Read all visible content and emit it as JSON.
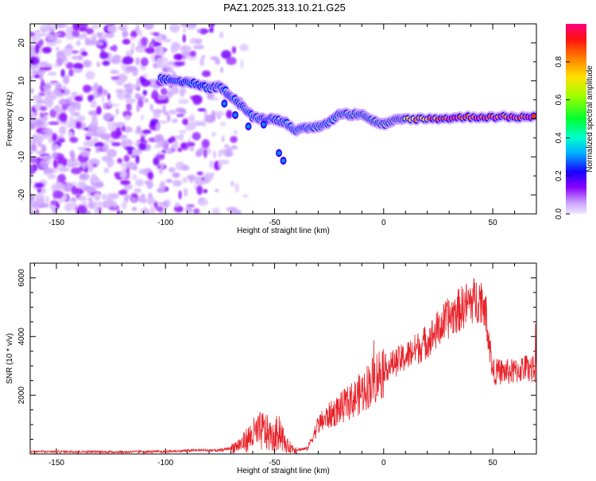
{
  "title": "PAZ1.2025.313.10.21.G25",
  "chart_data": [
    {
      "type": "heatmap",
      "xlabel": "Height of straight line (km)",
      "ylabel": "Frequency (Hz)",
      "xlim": [
        -162,
        70
      ],
      "ylim": [
        -25,
        25
      ],
      "xticks": [
        -150,
        -100,
        -50,
        0,
        50
      ],
      "yticks": [
        20,
        10,
        0,
        -10,
        -20
      ],
      "colorbar": {
        "label": "Normalized spectral amplitude",
        "range": [
          0,
          1
        ],
        "ticks": [
          0.0,
          0.2,
          0.4,
          0.6,
          0.8
        ]
      },
      "ridge_x": [
        -102,
        -95,
        -88,
        -80,
        -75,
        -70,
        -65,
        -60,
        -55,
        -50,
        -45,
        -40,
        -35,
        -30,
        -25,
        -20,
        -15,
        -10,
        -5,
        0,
        5,
        10,
        20,
        30,
        40,
        50,
        60,
        70
      ],
      "ridge_freq": [
        10.5,
        10,
        9.5,
        8,
        8.5,
        6,
        3.5,
        0.5,
        0,
        0,
        -1,
        -3,
        -2.5,
        -2,
        -1,
        1.5,
        1,
        1.5,
        -0.5,
        -1.5,
        -0.5,
        0,
        0,
        0.2,
        0.5,
        0.5,
        0.5,
        0.5
      ],
      "ridge_amp": [
        0.3,
        0.3,
        0.3,
        0.3,
        0.35,
        0.3,
        0.35,
        0.35,
        0.3,
        0.3,
        0.35,
        0.4,
        0.45,
        0.45,
        0.45,
        0.5,
        0.5,
        0.5,
        0.5,
        0.55,
        0.65,
        0.7,
        0.85,
        0.9,
        0.9,
        0.95,
        0.95,
        0.95
      ]
    },
    {
      "type": "line",
      "xlabel": "Height of straight line (km)",
      "ylabel": "SNR (10 * v/v)",
      "xlim": [
        -162,
        70
      ],
      "ylim": [
        0,
        6500
      ],
      "xticks": [
        -150,
        -100,
        -50,
        0,
        50
      ],
      "yticks": [
        2000,
        4000,
        6000
      ],
      "series": [
        {
          "name": "SNR",
          "color": "#e8232a",
          "x": [
            -162,
            -140,
            -120,
            -100,
            -85,
            -75,
            -70,
            -65,
            -60,
            -55,
            -50,
            -48,
            -45,
            -40,
            -35,
            -30,
            -25,
            -20,
            -15,
            -10,
            -5,
            0,
            10,
            20,
            30,
            40,
            45,
            47,
            50,
            55,
            60,
            65,
            70
          ],
          "y": [
            80,
            80,
            70,
            80,
            130,
            120,
            200,
            350,
            650,
            800,
            500,
            900,
            300,
            150,
            180,
            1000,
            1300,
            1550,
            1800,
            2100,
            2500,
            2900,
            3300,
            3850,
            4650,
            5200,
            5300,
            4700,
            2800,
            2800,
            2800,
            2950,
            2850
          ]
        }
      ]
    }
  ]
}
